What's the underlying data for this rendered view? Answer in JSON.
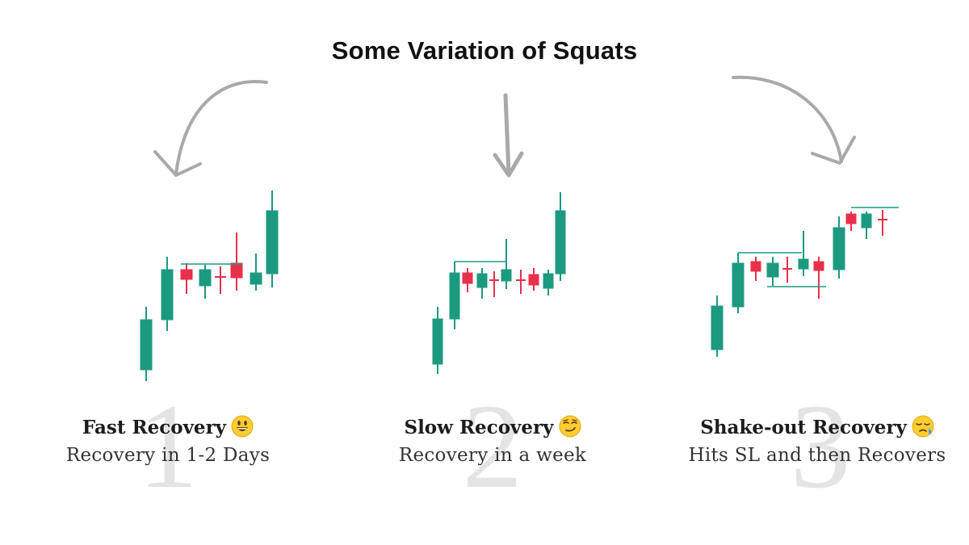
{
  "title": "Some Variation of Squats",
  "colors": {
    "bull": "#1c9a80",
    "bear": "#e8304a",
    "arrow": "#a9a9a9",
    "number": "#e4e4e4"
  },
  "panels": [
    {
      "number": "1",
      "heading": "Fast Recovery",
      "subtitle": "Recovery in 1-2 Days",
      "emoji": "grinning-face-icon"
    },
    {
      "number": "2",
      "heading": "Slow Recovery",
      "subtitle": "Recovery in a week",
      "emoji": "smirking-face-icon"
    },
    {
      "number": "3",
      "heading": "Shake-out Recovery",
      "subtitle": "Hits SL and then Recovers",
      "emoji": "sad-sweat-face-icon"
    }
  ]
}
